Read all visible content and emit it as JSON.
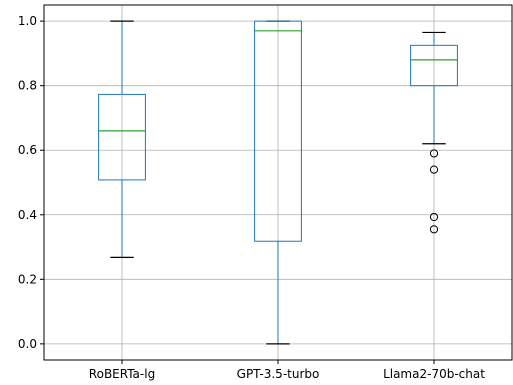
{
  "chart_data": {
    "type": "boxplot",
    "title": "",
    "xlabel": "",
    "ylabel": "",
    "ylim": [
      -0.05,
      1.05
    ],
    "yticks": [
      0.0,
      0.2,
      0.4,
      0.6,
      0.8,
      1.0
    ],
    "ytick_labels": [
      "0.0",
      "0.2",
      "0.4",
      "0.6",
      "0.8",
      "1.0"
    ],
    "grid": true,
    "categories": [
      "RoBERTa-lg",
      "GPT-3.5-turbo",
      "Llama2-70b-chat"
    ],
    "boxes": [
      {
        "name": "RoBERTa-lg",
        "whisker_low": 0.268,
        "q1": 0.508,
        "median": 0.66,
        "q3": 0.773,
        "whisker_high": 1.0,
        "outliers": []
      },
      {
        "name": "GPT-3.5-turbo",
        "whisker_low": 0.0,
        "q1": 0.318,
        "median": 0.97,
        "q3": 1.0,
        "whisker_high": 1.0,
        "outliers": []
      },
      {
        "name": "Llama2-70b-chat",
        "whisker_low": 0.62,
        "q1": 0.8,
        "median": 0.88,
        "q3": 0.925,
        "whisker_high": 0.965,
        "outliers": [
          0.59,
          0.54,
          0.393,
          0.355
        ]
      }
    ],
    "colors": {
      "box": "#1f77b4",
      "median": "#2ca02c",
      "whisker_cap": "#000000",
      "grid": "#b0b0b0",
      "axes": "#000000"
    }
  }
}
